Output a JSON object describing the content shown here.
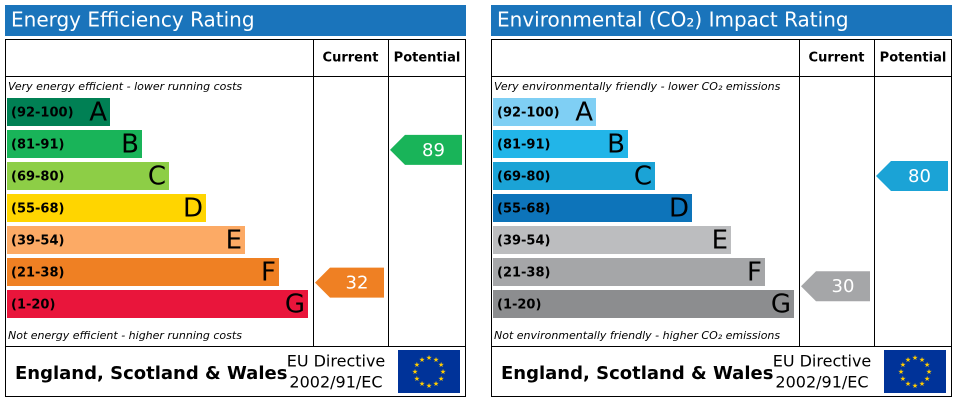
{
  "panels": [
    {
      "title": "Energy Efficiency Rating",
      "current_label": "Current",
      "potential_label": "Potential",
      "top_note": "Very energy efficient - lower running costs",
      "bottom_note": "Not energy efficient - higher running costs",
      "bands": [
        {
          "range": "(92-100)",
          "letter": "A",
          "color": "#008054"
        },
        {
          "range": "(81-91)",
          "letter": "B",
          "color": "#19b459"
        },
        {
          "range": "(69-80)",
          "letter": "C",
          "color": "#8dce46"
        },
        {
          "range": "(55-68)",
          "letter": "D",
          "color": "#ffd500"
        },
        {
          "range": "(39-54)",
          "letter": "E",
          "color": "#fcaa65"
        },
        {
          "range": "(21-38)",
          "letter": "F",
          "color": "#ef8023"
        },
        {
          "range": "(1-20)",
          "letter": "G",
          "color": "#e9153b"
        }
      ],
      "current": 32,
      "potential": 89,
      "region": "England, Scotland & Wales",
      "directive": "EU Directive",
      "directive_code": "2002/91/EC"
    },
    {
      "title": "Environmental (CO₂) Impact Rating",
      "current_label": "Current",
      "potential_label": "Potential",
      "top_note": "Very environmentally friendly - lower CO₂ emissions",
      "bottom_note": "Not environmentally friendly - higher CO₂ emissions",
      "bands": [
        {
          "range": "(92-100)",
          "letter": "A",
          "color": "#7fcff4"
        },
        {
          "range": "(81-91)",
          "letter": "B",
          "color": "#22b5e8"
        },
        {
          "range": "(69-80)",
          "letter": "C",
          "color": "#1ba3d6"
        },
        {
          "range": "(55-68)",
          "letter": "D",
          "color": "#0d74ba"
        },
        {
          "range": "(39-54)",
          "letter": "E",
          "color": "#bcbdbf"
        },
        {
          "range": "(21-38)",
          "letter": "F",
          "color": "#a5a6a8"
        },
        {
          "range": "(1-20)",
          "letter": "G",
          "color": "#8c8d8f"
        }
      ],
      "current": 30,
      "potential": 80,
      "region": "England, Scotland & Wales",
      "directive": "EU Directive",
      "directive_code": "2002/91/EC"
    }
  ]
}
